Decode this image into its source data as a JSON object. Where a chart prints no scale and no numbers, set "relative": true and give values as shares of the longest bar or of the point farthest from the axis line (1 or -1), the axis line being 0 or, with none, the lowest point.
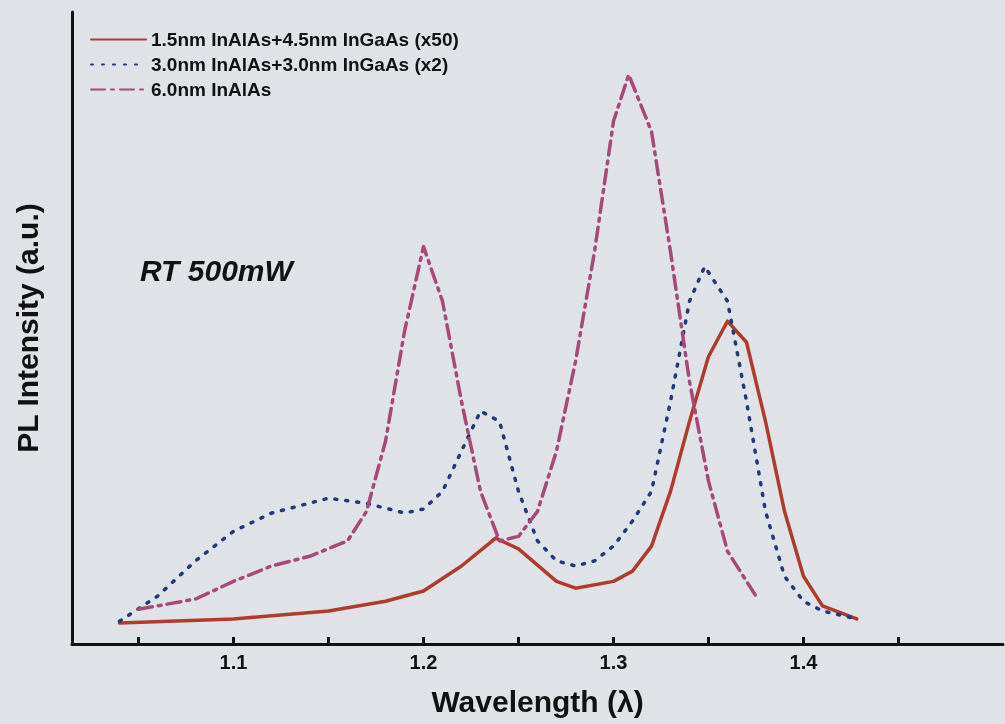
{
  "chart_data": {
    "type": "line",
    "relative": true,
    "xlabel": "Wavelength (λ)",
    "ylabel": "PL Intensity (a.u.)",
    "xlim": [
      1.015,
      1.505
    ],
    "xticks": [
      {
        "value": 1.05,
        "label": null
      },
      1.1,
      {
        "value": 1.15,
        "label": null
      },
      1.2,
      {
        "value": 1.25,
        "label": null
      },
      1.3,
      {
        "value": 1.35,
        "label": null
      },
      1.4,
      {
        "value": 1.45,
        "label": null
      }
    ],
    "legend": "top left",
    "marker": "none",
    "annotations": [
      "RT 500mW"
    ],
    "series": [
      {
        "name": "1.5nm InAlAs+4.5nm InGaAs (x50)",
        "color": "#b03a2e",
        "line_style": "solid",
        "x": [
          1.04,
          1.1,
          1.15,
          1.18,
          1.2,
          1.22,
          1.238,
          1.25,
          1.27,
          1.28,
          1.3,
          1.31,
          1.32,
          1.33,
          1.34,
          1.35,
          1.36,
          1.37,
          1.38,
          1.39,
          1.4,
          1.41,
          1.428
        ],
        "values": [
          0.037,
          0.044,
          0.058,
          0.075,
          0.093,
          0.137,
          0.186,
          0.167,
          0.11,
          0.098,
          0.11,
          0.128,
          0.172,
          0.268,
          0.391,
          0.505,
          0.567,
          0.53,
          0.391,
          0.233,
          0.119,
          0.067,
          0.044
        ]
      },
      {
        "name": "3.0nm InAlAs+3.0nm InGaAs (x2)",
        "color": "#1f3a7a",
        "line_style": "dotted",
        "x": [
          1.04,
          1.06,
          1.08,
          1.1,
          1.12,
          1.15,
          1.17,
          1.19,
          1.2,
          1.21,
          1.22,
          1.23,
          1.24,
          1.25,
          1.26,
          1.27,
          1.28,
          1.29,
          1.3,
          1.31,
          1.32,
          1.33,
          1.34,
          1.348,
          1.36,
          1.37,
          1.38,
          1.39,
          1.4,
          1.41,
          1.428
        ],
        "values": [
          0.04,
          0.084,
          0.146,
          0.198,
          0.23,
          0.256,
          0.247,
          0.23,
          0.237,
          0.268,
          0.339,
          0.409,
          0.391,
          0.268,
          0.181,
          0.146,
          0.137,
          0.146,
          0.172,
          0.216,
          0.268,
          0.426,
          0.602,
          0.663,
          0.602,
          0.426,
          0.233,
          0.119,
          0.075,
          0.058,
          0.044
        ]
      },
      {
        "name": "6.0nm InAlAs",
        "color": "#a8487a",
        "line_style": "dashed",
        "x": [
          1.05,
          1.08,
          1.1,
          1.12,
          1.14,
          1.16,
          1.17,
          1.18,
          1.19,
          1.2,
          1.21,
          1.22,
          1.23,
          1.24,
          1.25,
          1.26,
          1.27,
          1.28,
          1.29,
          1.3,
          1.308,
          1.32,
          1.33,
          1.34,
          1.35,
          1.36,
          1.375
        ],
        "values": [
          0.061,
          0.079,
          0.11,
          0.137,
          0.154,
          0.181,
          0.233,
          0.356,
          0.549,
          0.698,
          0.602,
          0.426,
          0.268,
          0.181,
          0.189,
          0.233,
          0.339,
          0.496,
          0.689,
          0.918,
          1,
          0.9,
          0.689,
          0.461,
          0.286,
          0.163,
          0.084
        ]
      }
    ]
  }
}
